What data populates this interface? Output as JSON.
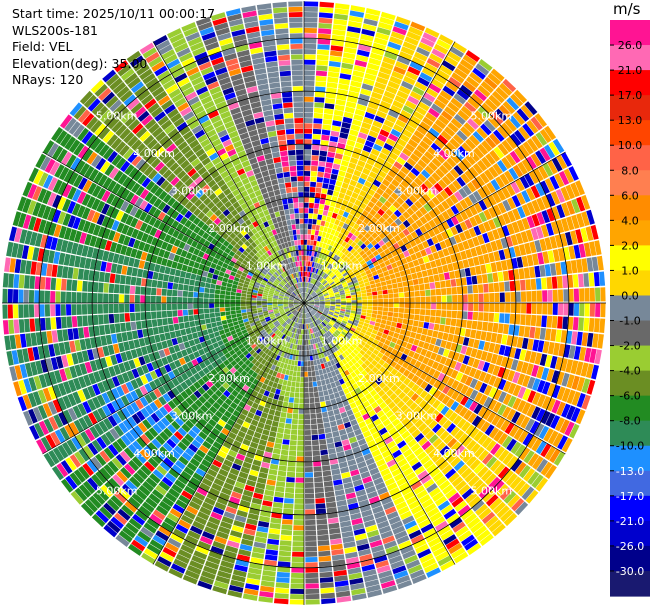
{
  "info": {
    "start_time": "Start time: 2025/10/11 00:00:17",
    "site": "WLS200s-181",
    "field": "Field: VEL",
    "elevation": "Elevation(deg): 35.00",
    "nrays": "NRays: 120"
  },
  "chart_data": {
    "type": "heatmap",
    "projection": "polar-ppi",
    "field": "VEL",
    "unit": "m/s",
    "n_rays": 120,
    "elevation_deg": 35.0,
    "range_rings_km": [
      1.0,
      2.0,
      3.0,
      4.0,
      5.0
    ],
    "range_ring_labels": [
      "1.00km",
      "2.00km",
      "3.00km",
      "4.00km",
      "5.00km"
    ],
    "max_range_km": 5.7,
    "colorbar": {
      "title": "m/s",
      "ticks": [
        "26.0",
        "21.0",
        "17.0",
        "13.0",
        "10.0",
        "8.0",
        "6.0",
        "4.0",
        "2.0",
        "1.0",
        "0.0",
        "-1.0",
        "-2.0",
        "-4.0",
        "-6.0",
        "-8.0",
        "-10.0",
        "-13.0",
        "-17.0",
        "-21.0",
        "-26.0",
        "-30.0"
      ],
      "colors": [
        "#ff1493",
        "#ff69b4",
        "#ff0000",
        "#e8280c",
        "#ff4500",
        "#ff6347",
        "#ff7f50",
        "#ff8c00",
        "#ffa500",
        "#ffff00",
        "#ffd700",
        "#778899",
        "#696969",
        "#9acd32",
        "#6b8e23",
        "#228b22",
        "#2e8b57",
        "#1e90ff",
        "#4169e1",
        "#0000ff",
        "#0000cd",
        "#00008b",
        "#191970"
      ]
    }
  }
}
